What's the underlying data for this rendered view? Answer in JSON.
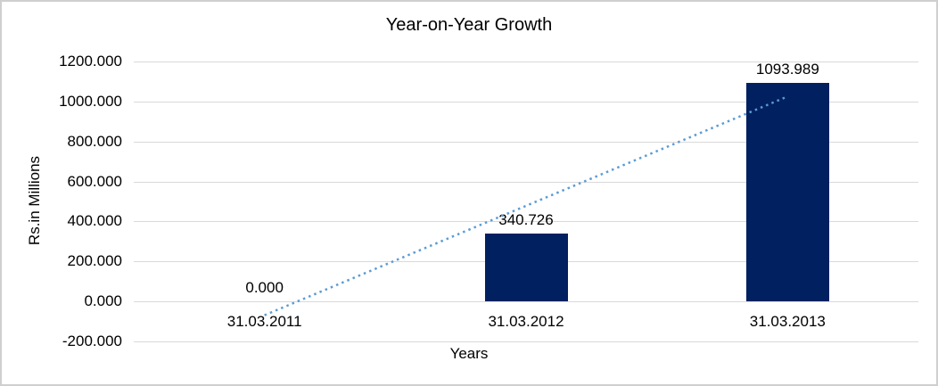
{
  "chart_data": {
    "type": "bar",
    "title": "Year-on-Year Growth",
    "categories": [
      "31.03.2011",
      "31.03.2012",
      "31.03.2013"
    ],
    "values": [
      0.0,
      340.726,
      1093.989
    ],
    "data_labels": [
      "0.000",
      "340.726",
      "1093.989"
    ],
    "xlabel": "Years",
    "ylabel": "Rs.in Millions",
    "ylim": [
      -200,
      1200
    ],
    "ytick_step": 200,
    "ytick_labels": [
      "-200.000",
      "0.000",
      "200.000",
      "400.000",
      "600.000",
      "800.000",
      "1000.000",
      "1200.000"
    ],
    "grid": true,
    "legend_position": "none",
    "trendline": {
      "type": "linear",
      "line_style": "dotted"
    },
    "colors": {
      "bar": "#002060",
      "trendline": "#5b9bd5",
      "gridline": "#d9d9d9",
      "text": "#000000"
    }
  }
}
